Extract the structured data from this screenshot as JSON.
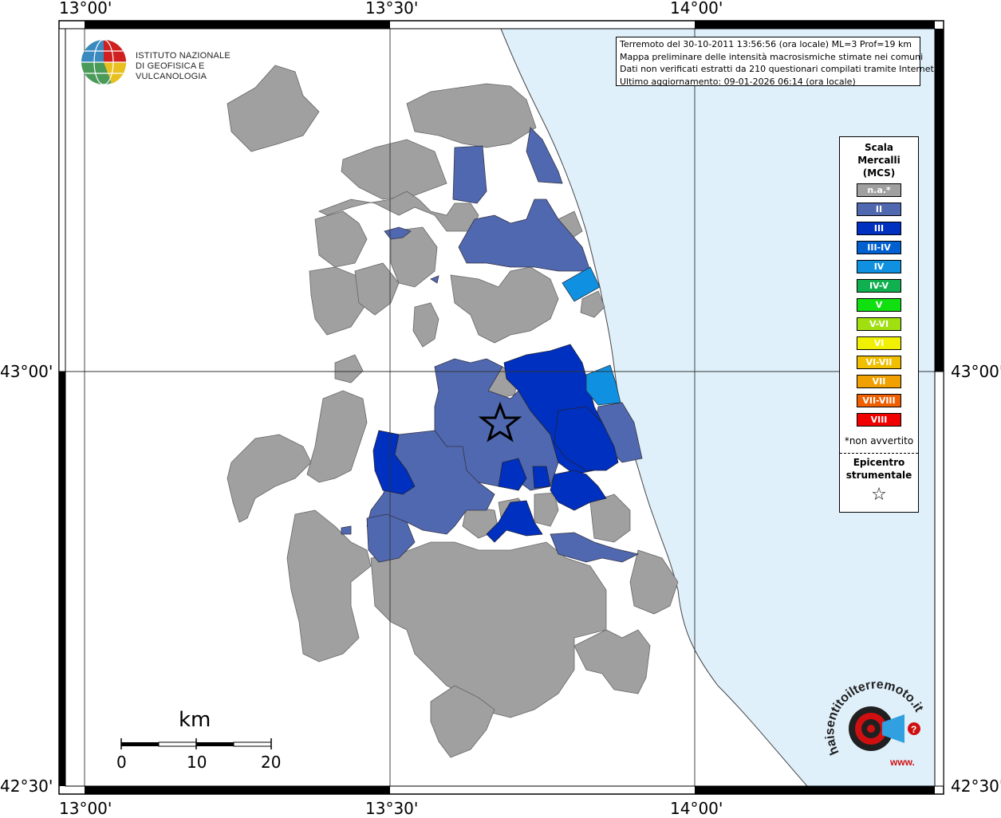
{
  "axes": {
    "lon_labels": [
      "13°00'",
      "13°30'",
      "14°00'"
    ],
    "lat_labels": [
      "43°00'",
      "42°30'"
    ]
  },
  "info_box": {
    "line1": "Terremoto del 30-10-2011 13:56:56 (ora locale) ML=3 Prof=19 km",
    "line2": "Mappa preliminare delle intensità macrosismiche stimate nei comuni",
    "line3": "Dati non verificati estratti da 210 questionari compilati tramite Internet.",
    "line4": "Ultimo aggiornamento: 09-01-2026 06:14 (ora locale)"
  },
  "logo": {
    "line1": "ISTITUTO NAZIONALE",
    "line2": "DI GEOFISICA E VULCANOLOGIA"
  },
  "legend": {
    "title_line1": "Scala",
    "title_line2": "Mercalli",
    "title_line3": "(MCS)",
    "items": [
      {
        "label": "n.a.*",
        "color": "#a0a0a0"
      },
      {
        "label": "II",
        "color": "#5068b0"
      },
      {
        "label": "III",
        "color": "#0030c0"
      },
      {
        "label": "III-IV",
        "color": "#0060d0"
      },
      {
        "label": "IV",
        "color": "#1090e0"
      },
      {
        "label": "IV-V",
        "color": "#10b050"
      },
      {
        "label": "V",
        "color": "#10e010"
      },
      {
        "label": "V-VI",
        "color": "#a0e010"
      },
      {
        "label": "VI",
        "color": "#f0f000"
      },
      {
        "label": "VI-VII",
        "color": "#f0c000"
      },
      {
        "label": "VII",
        "color": "#f0a000"
      },
      {
        "label": "VII-VIII",
        "color": "#f06000"
      },
      {
        "label": "VIII",
        "color": "#f00000"
      }
    ],
    "note": "*non avvertito",
    "epicenter_line1": "Epicentro",
    "epicenter_line2": "strumentale",
    "epicenter_symbol": "☆"
  },
  "scalebar": {
    "unit": "km",
    "labels": [
      "0",
      "10",
      "20"
    ]
  },
  "brand": {
    "text": "haisentitoilterremoto.it",
    "prefix": "www.",
    "colors": {
      "accent": "#d01010",
      "blue": "#30a0e0",
      "dark": "#202020"
    }
  },
  "map_colors": {
    "sea": "#dff0fb",
    "land": "#ffffff",
    "na": "#a0a0a0",
    "ii": "#5068b0",
    "iii": "#0030c0",
    "iv": "#1090e0"
  }
}
